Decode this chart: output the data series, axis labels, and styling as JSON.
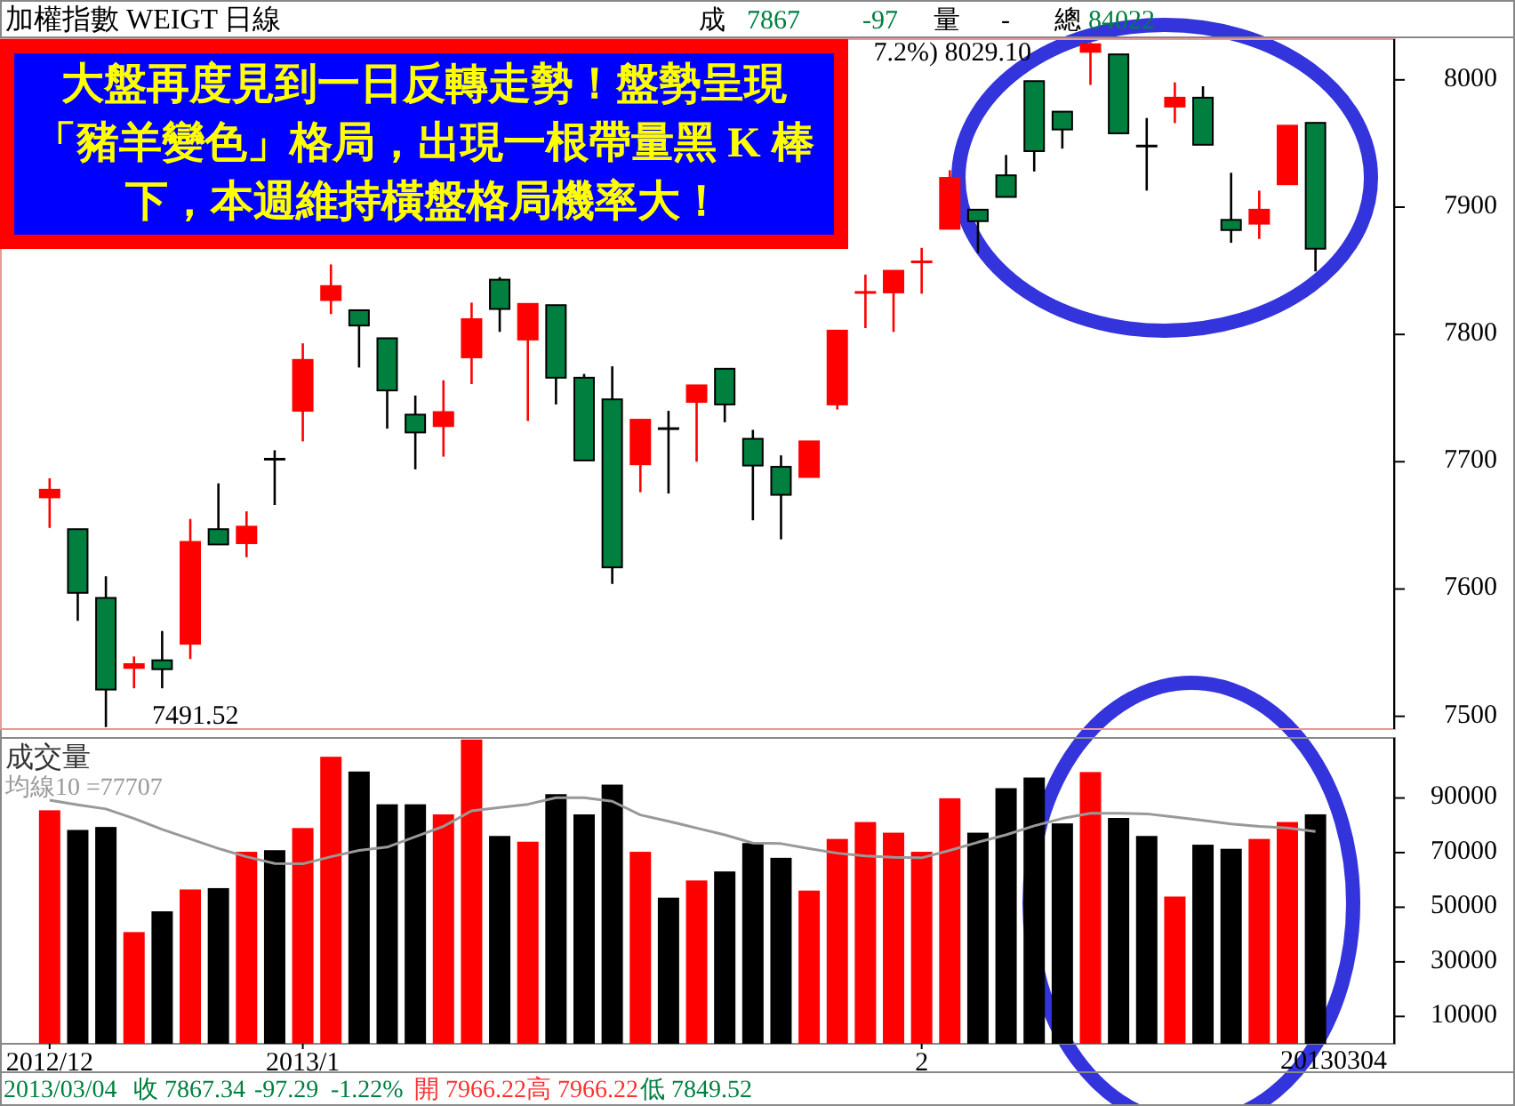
{
  "chart_data": [
    {
      "type": "candlestick",
      "title": "加權指數 WEIGT 日線",
      "tick_labels": "y",
      "categories": [
        null,
        null,
        null,
        null,
        null,
        null,
        null,
        null,
        null,
        null,
        null,
        null,
        null,
        null,
        null,
        null,
        null,
        null,
        null,
        null,
        null,
        null,
        null,
        null,
        null,
        null,
        null,
        null,
        null,
        null,
        null,
        null,
        null,
        null,
        null,
        null,
        null,
        null,
        null,
        null,
        null,
        null,
        null,
        null,
        null,
        null
      ],
      "ohlc": [
        [
          7672,
          7687,
          7648,
          7678
        ],
        [
          7647,
          7647,
          7575,
          7597
        ],
        [
          7593,
          7610,
          7491.52,
          7521
        ],
        [
          7538,
          7547,
          7522,
          7541
        ],
        [
          7544,
          7567,
          7522,
          7537
        ],
        [
          7557,
          7655,
          7545,
          7637
        ],
        [
          7647,
          7683,
          7635,
          7635
        ],
        [
          7636,
          7661,
          7625,
          7649
        ],
        [
          7702,
          7709,
          7666,
          7702
        ],
        [
          7740,
          7793,
          7716,
          7780
        ],
        [
          7827,
          7855,
          7816,
          7838
        ],
        [
          7819,
          7819,
          7774,
          7807
        ],
        [
          7797,
          7797,
          7726,
          7756
        ],
        [
          7737,
          7752,
          7694,
          7723
        ],
        [
          7728,
          7764,
          7704,
          7739
        ],
        [
          7782,
          7825,
          7761,
          7812
        ],
        [
          7843,
          7845,
          7802,
          7820
        ],
        [
          7796,
          7824,
          7732,
          7824
        ],
        [
          7823,
          7823,
          7745,
          7766
        ],
        [
          7766,
          7769,
          7701,
          7701
        ],
        [
          7749,
          7775,
          7604,
          7617
        ],
        [
          7698,
          7733,
          7676,
          7733
        ],
        [
          7726,
          7740,
          7675,
          7726
        ],
        [
          7747,
          7760,
          7700,
          7760
        ],
        [
          7773,
          7773,
          7731,
          7745
        ],
        [
          7718,
          7725,
          7654,
          7697
        ],
        [
          7696,
          7705,
          7639,
          7674
        ],
        [
          7688,
          7716,
          7688,
          7716
        ],
        [
          7745,
          7803,
          7741,
          7803
        ],
        [
          7832,
          7847,
          7805,
          7833
        ],
        [
          7833,
          7850,
          7802,
          7850
        ],
        [
          7856,
          7868,
          7832,
          7857
        ],
        [
          7883,
          7929,
          7883,
          7923
        ],
        [
          7898,
          7898,
          7864,
          7889
        ],
        [
          7925,
          7941,
          7908,
          7908
        ],
        [
          7999,
          7999,
          7928,
          7944
        ],
        [
          7975,
          7975,
          7946,
          7961
        ],
        [
          8022,
          8029.1,
          7996,
          8028
        ],
        [
          8020,
          8020,
          7958,
          7958
        ],
        [
          7948,
          7970,
          7913,
          7948
        ],
        [
          7979,
          7998,
          7966,
          7986
        ],
        [
          7986,
          7995,
          7949,
          7949
        ],
        [
          7890,
          7927,
          7872,
          7882
        ],
        [
          7887,
          7913,
          7875,
          7898
        ],
        [
          7918,
          7964,
          7918,
          7964
        ],
        [
          7966.22,
          7966.22,
          7849.52,
          7867.34
        ]
      ],
      "colors": [
        "#ff0000",
        "#007f3f",
        "#007f3f",
        "#ff0000",
        "#007f3f",
        "#ff0000",
        "#007f3f",
        "#ff0000",
        "#000000",
        "#ff0000",
        "#ff0000",
        "#007f3f",
        "#007f3f",
        "#007f3f",
        "#ff0000",
        "#ff0000",
        "#007f3f",
        "#ff0000",
        "#007f3f",
        "#007f3f",
        "#007f3f",
        "#ff0000",
        "#000000",
        "#ff0000",
        "#007f3f",
        "#007f3f",
        "#007f3f",
        "#ff0000",
        "#ff0000",
        "#ff0000",
        "#ff0000",
        "#ff0000",
        "#ff0000",
        "#007f3f",
        "#007f3f",
        "#007f3f",
        "#007f3f",
        "#ff0000",
        "#007f3f",
        "#000000",
        "#ff0000",
        "#007f3f",
        "#007f3f",
        "#ff0000",
        "#ff0000",
        "#007f3f"
      ],
      "ylim": [
        7490,
        8032
      ],
      "yticks": [
        7500,
        7600,
        7700,
        7800,
        7900,
        8000
      ],
      "annotations": [
        "成",
        "7867",
        "-97",
        "量",
        "-",
        "總",
        "84022",
        "大盤再度見到一日反轉走勢！盤勢呈現「豬羊變色」格局，出現一根帶量黑 K 棒下，本週維持橫盤格局機率大！",
        "7491.52",
        "7.2%) 8029.10"
      ]
    },
    {
      "type": "bar",
      "title": "成交量",
      "categories": [
        "2012/12",
        null,
        null,
        null,
        null,
        null,
        null,
        null,
        null,
        "2013/1",
        null,
        null,
        null,
        null,
        null,
        null,
        null,
        null,
        null,
        null,
        null,
        null,
        null,
        null,
        null,
        null,
        null,
        null,
        null,
        null,
        null,
        "2",
        null,
        null,
        null,
        null,
        null,
        null,
        null,
        null,
        null,
        null,
        null,
        null,
        null,
        null
      ],
      "series": [
        {
          "type": "bar",
          "colors": [
            "#ff0000",
            "#000000",
            "#000000",
            "#ff0000",
            "#000000",
            "#ff0000",
            "#000000",
            "#ff0000",
            "#000000",
            "#ff0000",
            "#ff0000",
            "#000000",
            "#000000",
            "#000000",
            "#ff0000",
            "#ff0000",
            "#000000",
            "#ff0000",
            "#000000",
            "#000000",
            "#000000",
            "#ff0000",
            "#000000",
            "#ff0000",
            "#000000",
            "#000000",
            "#000000",
            "#ff0000",
            "#ff0000",
            "#ff0000",
            "#ff0000",
            "#ff0000",
            "#ff0000",
            "#000000",
            "#000000",
            "#000000",
            "#000000",
            "#ff0000",
            "#000000",
            "#000000",
            "#ff0000",
            "#000000",
            "#000000",
            "#ff0000",
            "#ff0000",
            "#000000"
          ],
          "values": [
            85500,
            78300,
            79400,
            40900,
            48500,
            56500,
            57000,
            70300,
            70900,
            79000,
            105100,
            99700,
            87700,
            87700,
            84000,
            111400,
            76100,
            74000,
            91400,
            84000,
            94900,
            70300,
            53500,
            59800,
            63100,
            73500,
            68100,
            56100,
            75000,
            81200,
            77300,
            70300,
            89900,
            77300,
            93600,
            97500,
            80700,
            99500,
            82700,
            76100,
            53900,
            72900,
            71400,
            75000,
            81200,
            84022
          ]
        },
        {
          "type": "line",
          "name": "均線10 =77707",
          "color": "#999999",
          "values": [
            89200,
            87500,
            86000,
            82500,
            78500,
            75000,
            71500,
            68500,
            66000,
            65900,
            68500,
            70800,
            72000,
            75800,
            79600,
            85300,
            86500,
            87700,
            90100,
            90100,
            88800,
            83800,
            81500,
            79000,
            76500,
            73500,
            73300,
            71500,
            69800,
            68800,
            68300,
            68100,
            70800,
            73800,
            76500,
            79800,
            82500,
            84400,
            84400,
            84200,
            83000,
            81800,
            80500,
            79600,
            79000,
            77707
          ]
        }
      ],
      "ylim": [
        0,
        112000
      ],
      "yticks": [
        10000,
        30000,
        50000,
        70000,
        90000
      ],
      "annotations": [
        "20130304",
        "2013/03/04",
        "收 7867.34",
        "-97.29",
        "-1.22%",
        "開 7966.22",
        "高 7966.22",
        "低 7849.52"
      ]
    }
  ]
}
